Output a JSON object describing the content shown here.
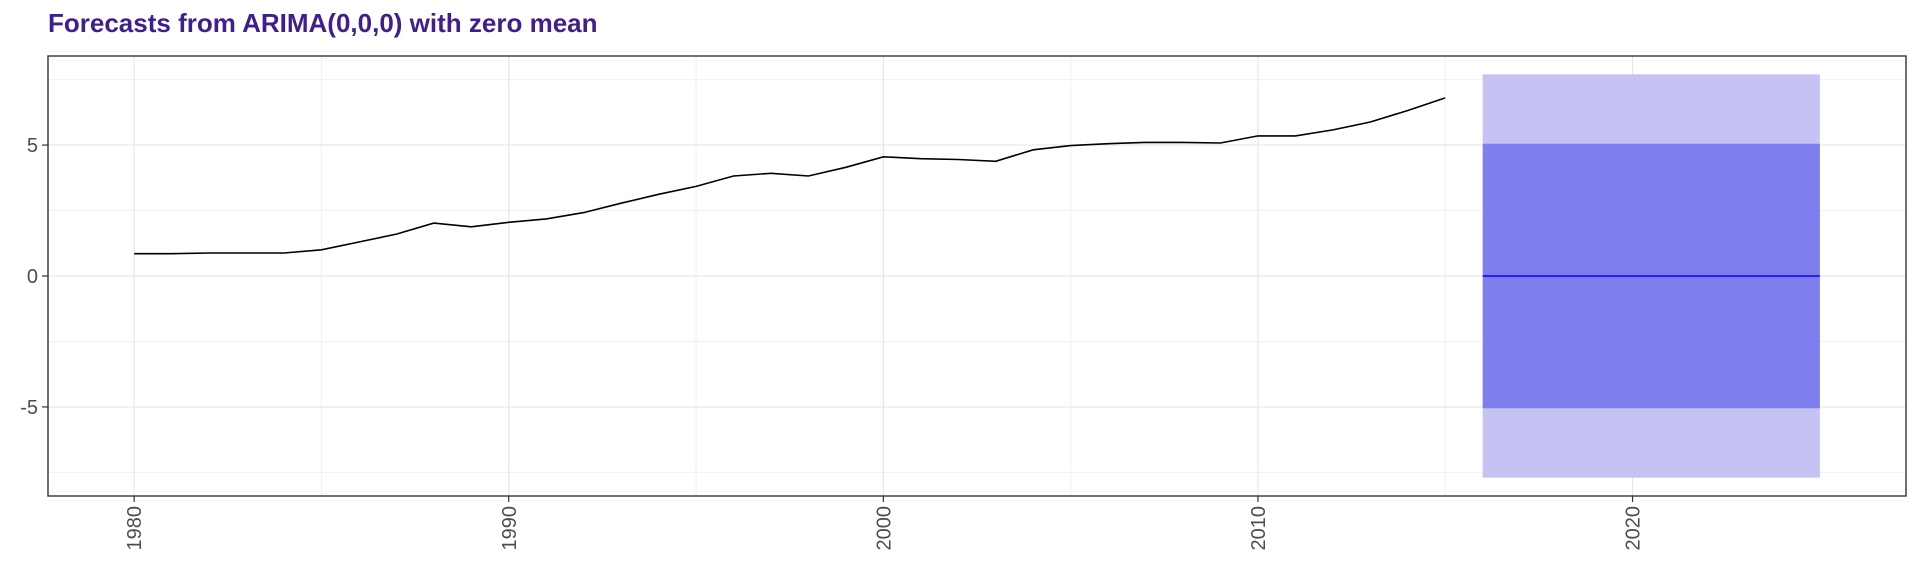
{
  "chart_data": {
    "type": "line",
    "title": "Forecasts from ARIMA(0,0,0) with zero mean",
    "xlabel": "",
    "ylabel": "",
    "xlim": [
      1977.7,
      2027.3
    ],
    "ylim": [
      -8.4,
      8.4
    ],
    "x_ticks": [
      1980,
      1990,
      2000,
      2010,
      2020
    ],
    "x_tick_labels": [
      "1980",
      "1990",
      "2000",
      "2010",
      "2020"
    ],
    "y_ticks": [
      -5,
      0,
      5
    ],
    "y_tick_labels": [
      "-5",
      "0",
      "5"
    ],
    "grid": true,
    "series": [
      {
        "kind": "history",
        "color": "#000000",
        "x": [
          1980,
          1981,
          1982,
          1983,
          1984,
          1985,
          1986,
          1987,
          1988,
          1989,
          1990,
          1991,
          1992,
          1993,
          1994,
          1995,
          1996,
          1997,
          1998,
          1999,
          2000,
          2001,
          2002,
          2003,
          2004,
          2005,
          2006,
          2007,
          2008,
          2009,
          2010,
          2011,
          2012,
          2013,
          2014,
          2015
        ],
        "y": [
          0.85,
          0.85,
          0.88,
          0.88,
          0.88,
          1.0,
          1.3,
          1.6,
          2.02,
          1.88,
          2.05,
          2.18,
          2.42,
          2.78,
          3.12,
          3.42,
          3.82,
          3.92,
          3.82,
          4.15,
          4.55,
          4.48,
          4.45,
          4.38,
          4.82,
          4.98,
          5.05,
          5.1,
          5.1,
          5.08,
          5.35,
          5.35,
          5.58,
          5.88,
          6.32,
          6.8
        ]
      },
      {
        "kind": "forecast_mean",
        "color": "#0000ff",
        "x": [
          2016,
          2025
        ],
        "y": [
          0,
          0
        ]
      }
    ],
    "intervals": [
      {
        "level": 95,
        "x": [
          2016,
          2025
        ],
        "lower": -7.7,
        "upper": 7.7,
        "color": "#c4c3f4"
      },
      {
        "level": 80,
        "x": [
          2016,
          2025
        ],
        "lower": -5.05,
        "upper": 5.05,
        "color": "#7e7eee"
      }
    ]
  }
}
